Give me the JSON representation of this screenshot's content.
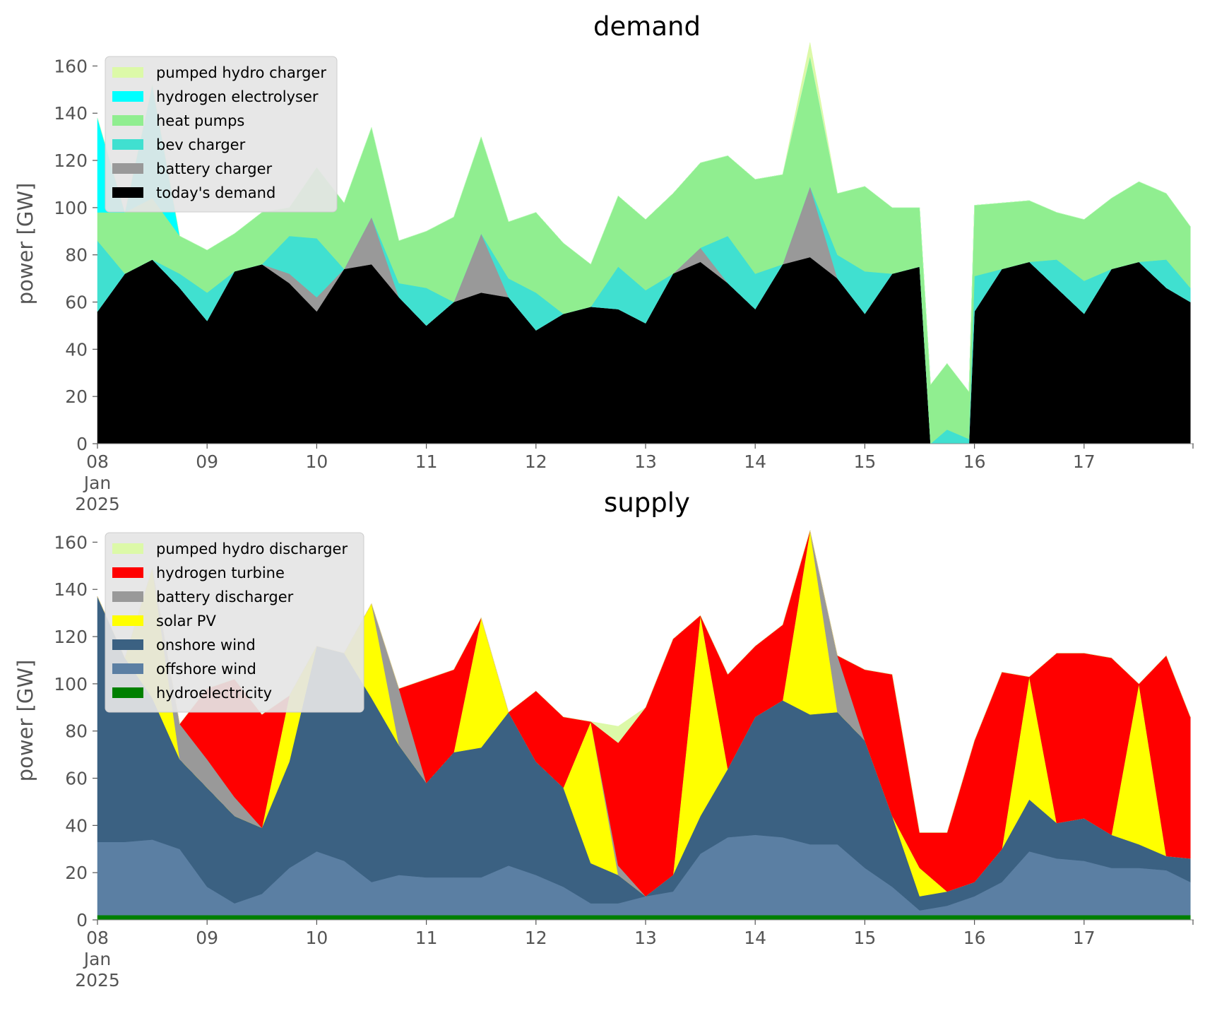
{
  "chart_data": [
    {
      "type": "area",
      "title": "demand",
      "xlabel": "",
      "ylabel": "power [GW]",
      "ylim": [
        0,
        170
      ],
      "xlim": [
        "2025-01-08",
        "2025-01-18"
      ],
      "grid": false,
      "legend_position": "top-left",
      "x_tick_labels": [
        "08\nJan\n2025",
        "09",
        "10",
        "11",
        "12",
        "13",
        "14",
        "15",
        "16",
        "17"
      ],
      "y_ticks": [
        0,
        20,
        40,
        60,
        80,
        100,
        120,
        140,
        160
      ],
      "x_days": [
        0,
        0.25,
        0.5,
        0.75,
        1,
        1.25,
        1.5,
        1.75,
        2,
        2.25,
        2.5,
        2.75,
        3,
        3.25,
        3.5,
        3.75,
        4,
        4.25,
        4.5,
        4.75,
        5,
        5.25,
        5.5,
        5.75,
        6,
        6.25,
        6.5,
        6.75,
        7,
        7.25,
        7.5,
        7.6,
        7.75,
        7.95,
        8,
        8.25,
        8.5,
        8.75,
        9,
        9.25,
        9.5,
        9.75,
        9.97
      ],
      "stack_order": "bottom-to-top",
      "series": [
        {
          "name": "today's demand",
          "color": "#000000",
          "values": [
            56,
            72,
            78,
            66,
            52,
            73,
            76,
            68,
            56,
            74,
            76,
            62,
            50,
            60,
            64,
            62,
            48,
            55,
            58,
            57,
            51,
            72,
            77,
            68,
            57,
            76,
            79,
            70,
            55,
            72,
            75,
            0,
            0,
            0,
            56,
            74,
            77,
            66,
            55,
            74,
            77,
            66,
            60
          ]
        },
        {
          "name": "battery charger",
          "color": "#999999",
          "values": [
            0,
            0,
            0,
            0,
            0,
            0,
            0,
            4,
            6,
            0,
            20,
            0,
            0,
            0,
            25,
            0,
            0,
            0,
            0,
            0,
            0,
            0,
            6,
            0,
            0,
            0,
            30,
            0,
            0,
            0,
            0,
            0,
            0,
            0,
            0,
            0,
            0,
            0,
            0,
            0,
            0,
            0,
            0
          ]
        },
        {
          "name": "bev charger",
          "color": "#40e0d0",
          "values": [
            30,
            0,
            0,
            6,
            12,
            0,
            0,
            16,
            25,
            0,
            0,
            6,
            16,
            0,
            0,
            8,
            16,
            0,
            0,
            18,
            14,
            0,
            0,
            20,
            15,
            0,
            0,
            10,
            18,
            0,
            0,
            0,
            6,
            2,
            15,
            0,
            0,
            12,
            14,
            0,
            0,
            12,
            6
          ]
        },
        {
          "name": "heat pumps",
          "color": "#90ee90",
          "values": [
            12,
            26,
            26,
            16,
            18,
            16,
            22,
            12,
            30,
            28,
            38,
            18,
            24,
            36,
            41,
            24,
            34,
            30,
            18,
            30,
            30,
            34,
            36,
            34,
            40,
            38,
            55,
            26,
            36,
            28,
            25,
            25,
            28,
            20,
            30,
            28,
            26,
            20,
            26,
            30,
            34,
            28,
            26
          ]
        },
        {
          "name": "hydrogen electrolyser",
          "color": "#00ffff",
          "values": [
            40,
            0,
            48,
            0,
            0,
            0,
            0,
            0,
            0,
            0,
            0,
            0,
            0,
            0,
            0,
            0,
            0,
            0,
            0,
            0,
            0,
            0,
            0,
            0,
            0,
            0,
            0,
            0,
            0,
            0,
            0,
            0,
            0,
            0,
            0,
            0,
            0,
            0,
            0,
            0,
            0,
            0,
            0
          ]
        },
        {
          "name": "pumped hydro charger",
          "color": "#dcf9a8",
          "values": [
            0,
            0,
            0,
            0,
            0,
            0,
            0,
            0,
            0,
            0,
            0,
            0,
            0,
            0,
            0,
            0,
            0,
            0,
            0,
            0,
            0,
            0,
            0,
            0,
            0,
            0,
            6,
            0,
            0,
            0,
            0,
            0,
            0,
            0,
            0,
            0,
            0,
            0,
            0,
            0,
            0,
            0,
            0
          ]
        }
      ],
      "legend_entries": [
        "pumped hydro charger",
        "hydrogen electrolyser",
        "heat pumps",
        "bev charger",
        "battery charger",
        "today's demand"
      ]
    },
    {
      "type": "area",
      "title": "supply",
      "xlabel": "",
      "ylabel": "power [GW]",
      "ylim": [
        0,
        170
      ],
      "xlim": [
        "2025-01-08",
        "2025-01-18"
      ],
      "grid": false,
      "legend_position": "top-left",
      "x_tick_labels": [
        "08\nJan\n2025",
        "09",
        "10",
        "11",
        "12",
        "13",
        "14",
        "15",
        "16",
        "17"
      ],
      "y_ticks": [
        0,
        20,
        40,
        60,
        80,
        100,
        120,
        140,
        160
      ],
      "x_days": [
        0,
        0.25,
        0.5,
        0.75,
        1,
        1.25,
        1.5,
        1.75,
        2,
        2.25,
        2.5,
        2.75,
        3,
        3.25,
        3.5,
        3.75,
        4,
        4.25,
        4.5,
        4.75,
        5,
        5.25,
        5.5,
        5.75,
        6,
        6.25,
        6.5,
        6.75,
        7,
        7.25,
        7.5,
        7.75,
        8,
        8.25,
        8.5,
        8.75,
        9,
        9.25,
        9.5,
        9.75,
        9.97
      ],
      "stack_order": "bottom-to-top",
      "series": [
        {
          "name": "hydroelectricity",
          "color": "#008000",
          "values": [
            2,
            2,
            2,
            2,
            2,
            2,
            2,
            2,
            2,
            2,
            2,
            2,
            2,
            2,
            2,
            2,
            2,
            2,
            2,
            2,
            2,
            2,
            2,
            2,
            2,
            2,
            2,
            2,
            2,
            2,
            2,
            2,
            2,
            2,
            2,
            2,
            2,
            2,
            2,
            2,
            2
          ]
        },
        {
          "name": "offshore wind",
          "color": "#5b7fa3",
          "values": [
            31,
            31,
            32,
            28,
            12,
            5,
            9,
            20,
            27,
            23,
            14,
            17,
            16,
            16,
            16,
            21,
            17,
            12,
            5,
            5,
            8,
            10,
            26,
            33,
            34,
            33,
            30,
            30,
            20,
            12,
            2,
            4,
            8,
            14,
            27,
            24,
            23,
            20,
            20,
            19,
            14
          ]
        },
        {
          "name": "onshore wind",
          "color": "#3b6182",
          "values": [
            104,
            78,
            60,
            38,
            42,
            37,
            28,
            45,
            87,
            88,
            78,
            55,
            40,
            53,
            55,
            65,
            48,
            42,
            17,
            12,
            0,
            7,
            16,
            29,
            50,
            58,
            55,
            56,
            54,
            30,
            6,
            6,
            6,
            14,
            22,
            15,
            18,
            14,
            10,
            6,
            10
          ]
        },
        {
          "name": "solar PV",
          "color": "#ffff00",
          "values": [
            0,
            0,
            55,
            0,
            0,
            0,
            0,
            28,
            0,
            0,
            40,
            0,
            0,
            0,
            55,
            0,
            0,
            0,
            60,
            0,
            0,
            0,
            85,
            0,
            0,
            0,
            78,
            0,
            0,
            0,
            12,
            0,
            0,
            0,
            52,
            0,
            0,
            0,
            68,
            0,
            0
          ]
        },
        {
          "name": "battery discharger",
          "color": "#999999",
          "values": [
            0,
            0,
            0,
            15,
            12,
            8,
            0,
            0,
            0,
            0,
            0,
            24,
            0,
            0,
            0,
            0,
            0,
            0,
            0,
            4,
            0,
            0,
            0,
            0,
            0,
            0,
            0,
            24,
            0,
            0,
            0,
            0,
            0,
            0,
            0,
            0,
            0,
            0,
            0,
            0,
            0
          ]
        },
        {
          "name": "hydrogen turbine",
          "color": "#ff0000",
          "values": [
            0,
            0,
            0,
            0,
            30,
            50,
            48,
            0,
            0,
            0,
            0,
            0,
            44,
            35,
            0,
            0,
            30,
            30,
            0,
            52,
            80,
            100,
            0,
            40,
            30,
            32,
            0,
            0,
            30,
            60,
            15,
            25,
            60,
            75,
            0,
            72,
            70,
            75,
            0,
            85,
            60
          ]
        },
        {
          "name": "pumped hydro discharger",
          "color": "#dcf9a8",
          "values": [
            0,
            0,
            0,
            0,
            0,
            0,
            0,
            0,
            0,
            0,
            0,
            0,
            0,
            0,
            0,
            0,
            0,
            0,
            0,
            7,
            0,
            0,
            0,
            0,
            0,
            0,
            0,
            0,
            0,
            0,
            0,
            0,
            0,
            0,
            0,
            0,
            0,
            0,
            0,
            0,
            0
          ]
        }
      ],
      "legend_entries": [
        "pumped hydro discharger",
        "hydrogen turbine",
        "battery discharger",
        "solar PV",
        "onshore wind",
        "offshore wind",
        "hydroelectricity"
      ]
    }
  ]
}
